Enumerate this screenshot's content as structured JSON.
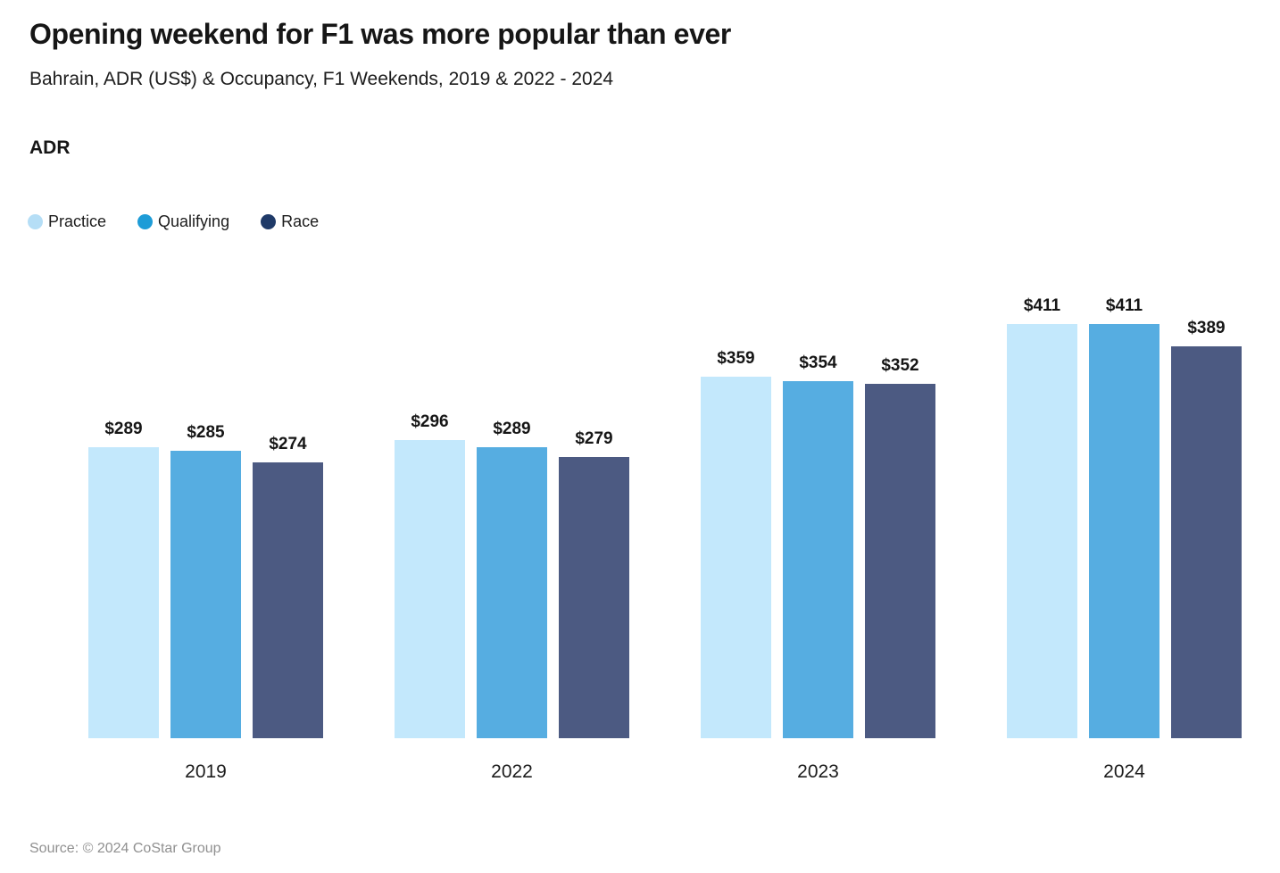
{
  "header": {
    "title": "Opening weekend for F1 was more popular than ever",
    "subtitle": "Bahrain, ADR (US$) & Occupancy, F1 Weekends, 2019 & 2022 - 2024"
  },
  "chart_data": {
    "type": "bar",
    "title": "ADR",
    "categories": [
      "2019",
      "2022",
      "2023",
      "2024"
    ],
    "series": [
      {
        "name": "Practice",
        "color": "#c3e8fc",
        "legend_color": "#b5def6",
        "values": [
          289,
          296,
          359,
          411
        ]
      },
      {
        "name": "Qualifying",
        "color": "#56ade1",
        "legend_color": "#1e9cd7",
        "values": [
          285,
          289,
          354,
          411
        ]
      },
      {
        "name": "Race",
        "color": "#4c5a82",
        "legend_color": "#1f3a68",
        "values": [
          274,
          279,
          352,
          389
        ]
      }
    ],
    "value_prefix": "$",
    "ylim": [
      0,
      411
    ],
    "grid": false,
    "legend_position": "top-left",
    "data_labels": true
  },
  "footer": {
    "source": "Source: © 2024 CoStar Group"
  }
}
